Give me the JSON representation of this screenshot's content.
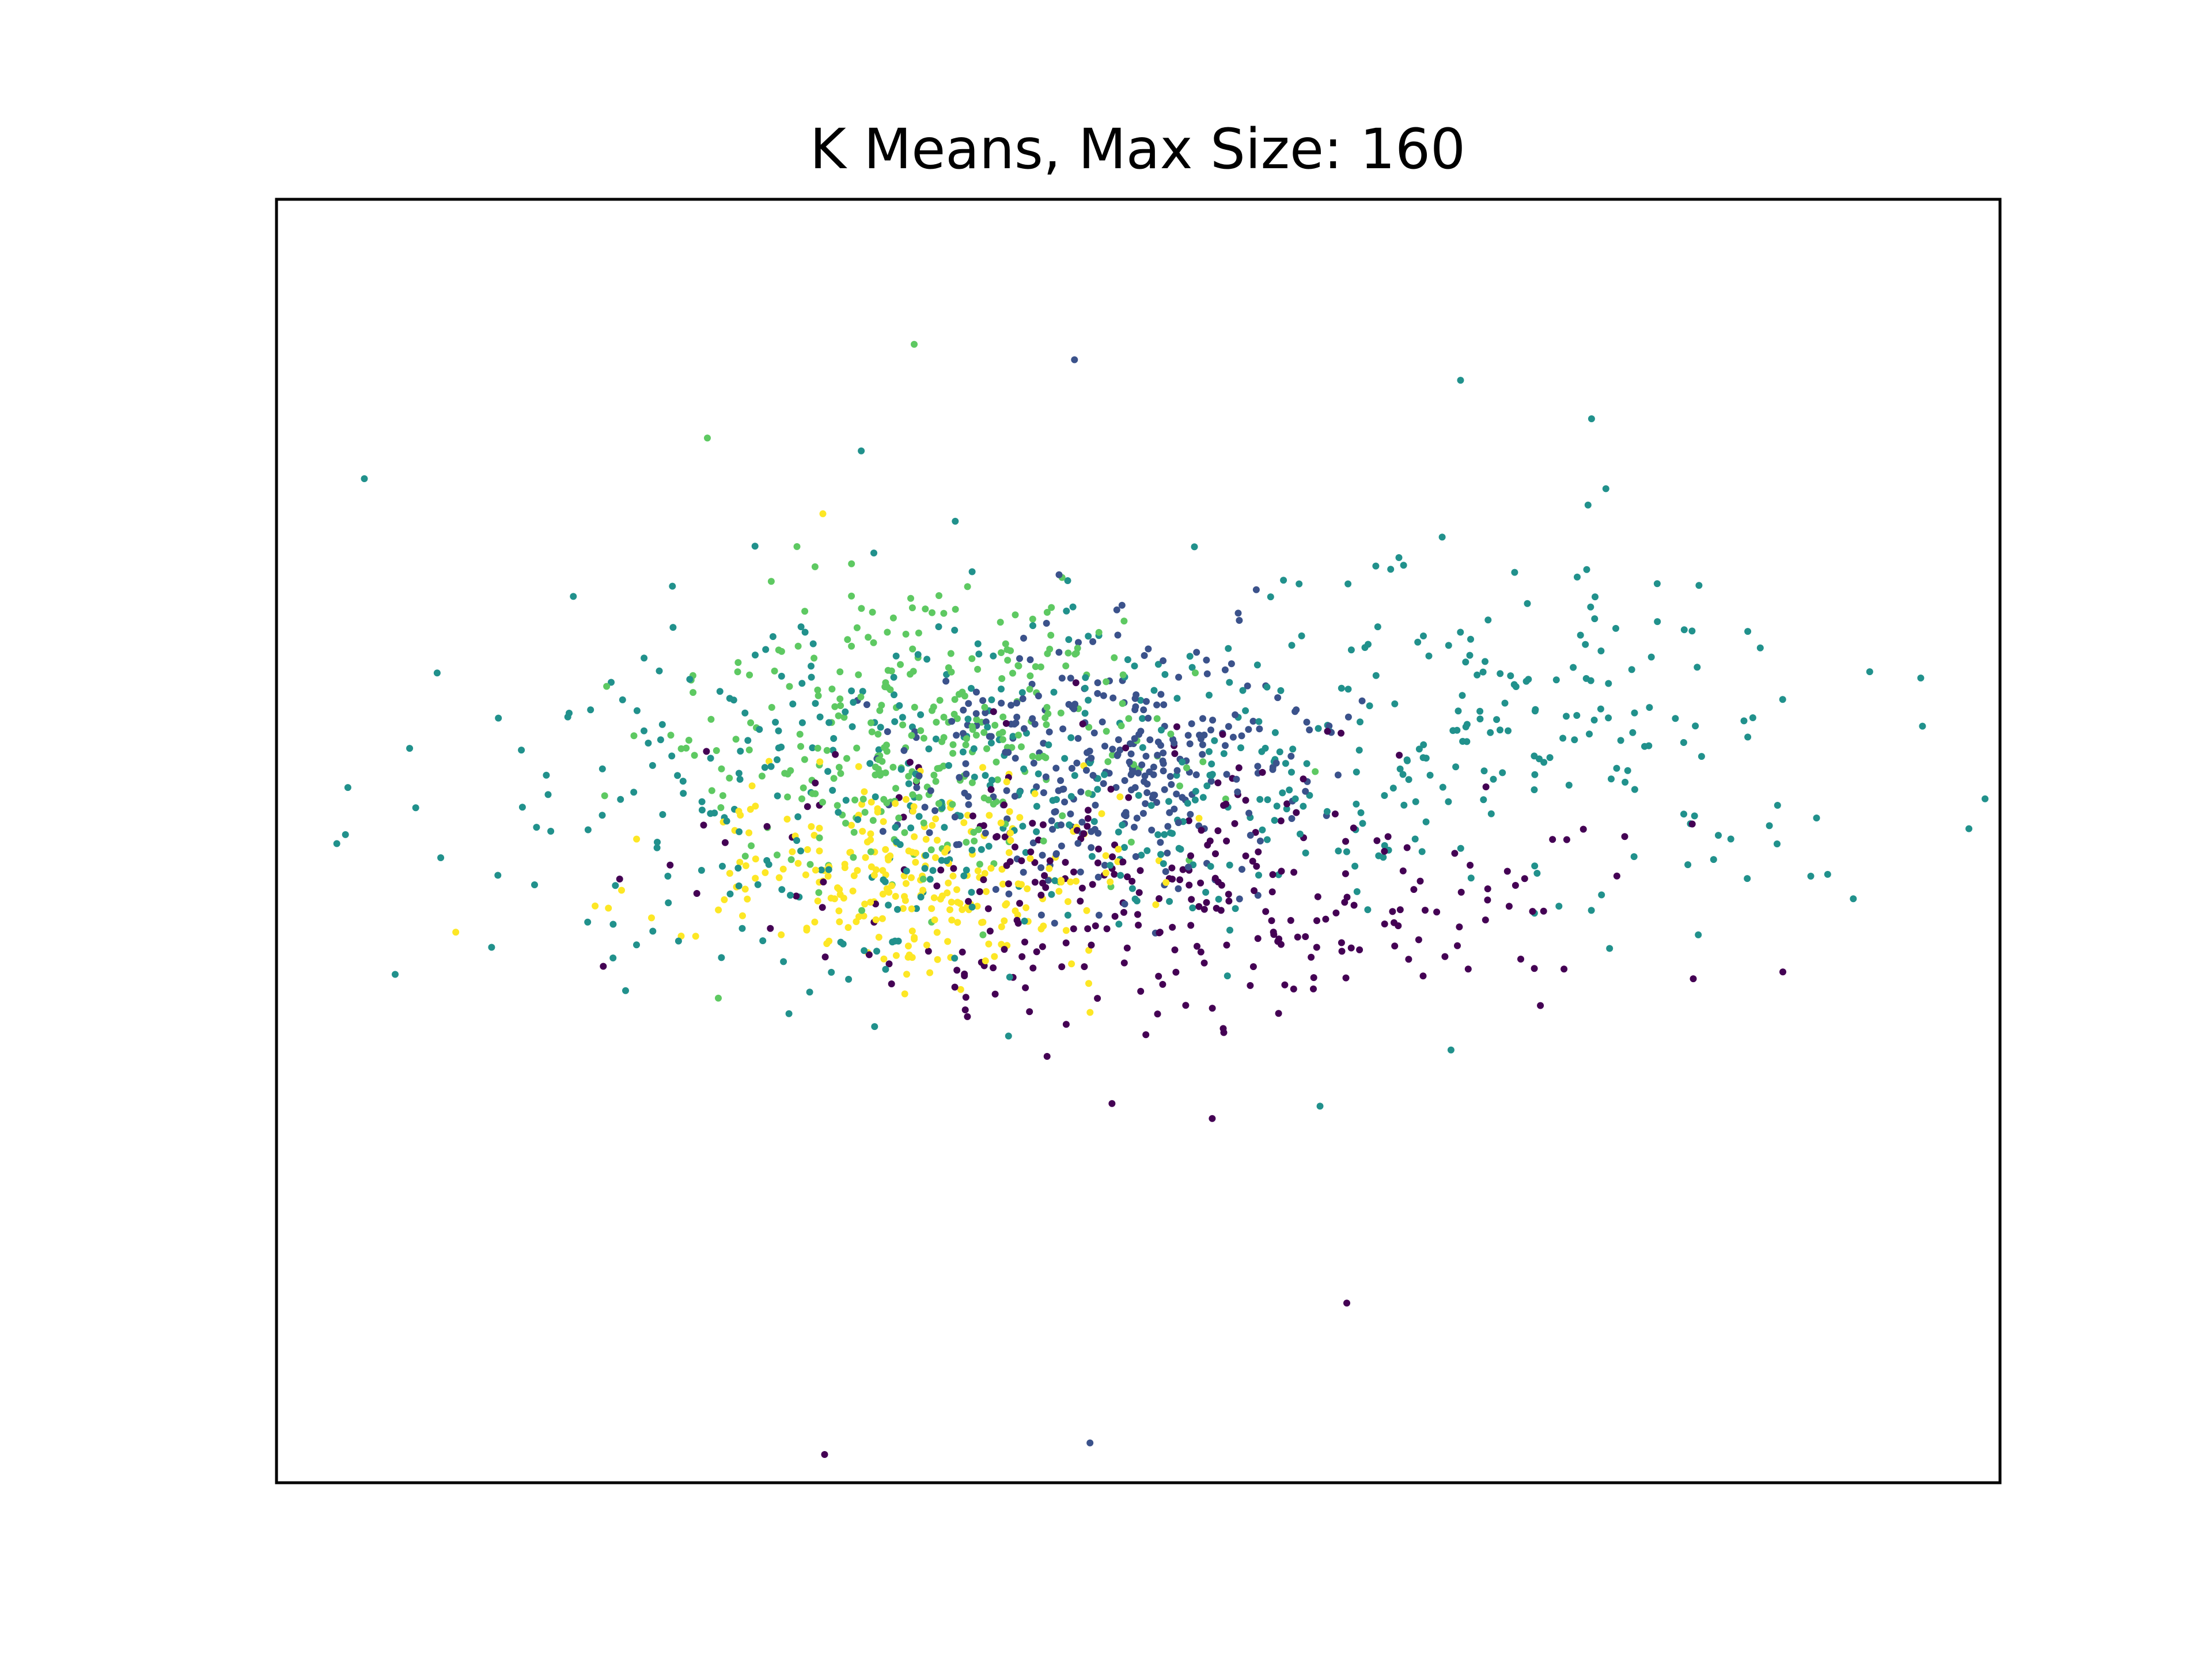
{
  "chart_data": {
    "type": "scatter",
    "title": "K Means, Max Size: 160",
    "xlabel": "",
    "ylabel": "",
    "ticks_visible": false,
    "grid": false,
    "legend": "none",
    "xlim": [
      0,
      100
    ],
    "ylim": [
      0,
      100
    ],
    "colormap": "viridis",
    "clusters": [
      {
        "color": "#440154",
        "center": [
          52,
          46
        ],
        "spread": [
          11,
          6
        ],
        "count": 300
      },
      {
        "color": "#3b528b",
        "center": [
          48,
          56
        ],
        "spread": [
          6,
          5
        ],
        "count": 320
      },
      {
        "color": "#21918c",
        "center": [
          64,
          58
        ],
        "spread": [
          14,
          7
        ],
        "count": 300
      },
      {
        "color": "#21918c",
        "center": [
          34,
          54
        ],
        "spread": [
          12,
          8
        ],
        "count": 280
      },
      {
        "color": "#5ec962",
        "center": [
          38,
          58
        ],
        "spread": [
          7,
          6
        ],
        "count": 320
      },
      {
        "color": "#fde725",
        "center": [
          37,
          47
        ],
        "spread": [
          6,
          4
        ],
        "count": 260
      }
    ],
    "sample_points": [
      {
        "x": 3.5,
        "y": 49.8,
        "c": "#21918c"
      },
      {
        "x": 4.0,
        "y": 50.5,
        "c": "#21918c"
      },
      {
        "x": 37.0,
        "y": 88.7,
        "c": "#5ec962"
      },
      {
        "x": 46.3,
        "y": 87.5,
        "c": "#3b528b"
      },
      {
        "x": 68.7,
        "y": 85.9,
        "c": "#21918c"
      },
      {
        "x": 76.3,
        "y": 82.9,
        "c": "#21918c"
      },
      {
        "x": 95.4,
        "y": 62.7,
        "c": "#21918c"
      },
      {
        "x": 90.0,
        "y": 47.4,
        "c": "#21918c"
      },
      {
        "x": 87.4,
        "y": 39.8,
        "c": "#440154"
      },
      {
        "x": 31.8,
        "y": 2.2,
        "c": "#440154"
      },
      {
        "x": 47.2,
        "y": 3.1,
        "c": "#3b528b"
      },
      {
        "x": 25.0,
        "y": 81.4,
        "c": "#5ec962"
      },
      {
        "x": 31.7,
        "y": 75.5,
        "c": "#fde725"
      },
      {
        "x": 10.4,
        "y": 42.9,
        "c": "#fde725"
      },
      {
        "x": 62.1,
        "y": 14.0,
        "c": "#440154"
      }
    ]
  }
}
